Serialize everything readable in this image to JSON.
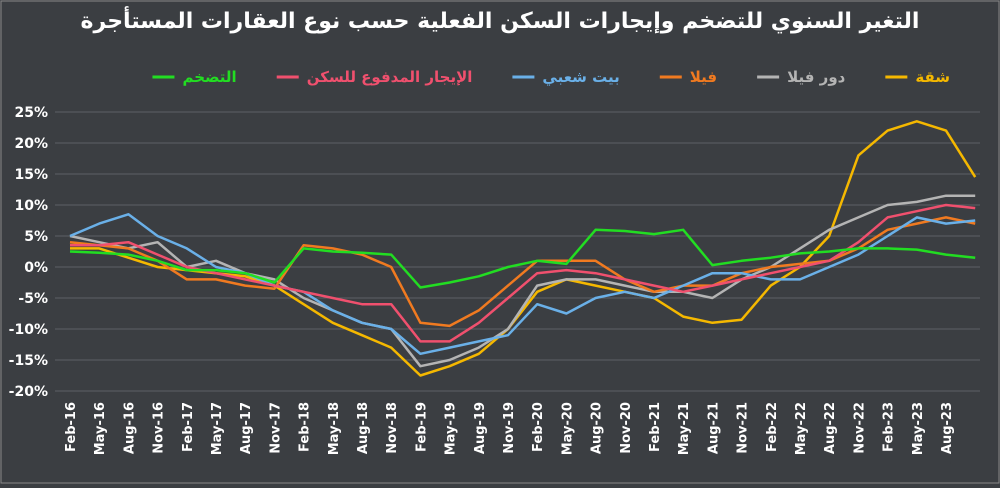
{
  "chart_data": {
    "type": "line",
    "title": "التغير السنوي للتضخم وإيجارات السكن الفعلية حسب نوع العقارات المستأجرة",
    "categories": [
      "Feb-16",
      "May-16",
      "Aug-16",
      "Nov-16",
      "Feb-17",
      "May-17",
      "Aug-17",
      "Nov-17",
      "Feb-18",
      "May-18",
      "Aug-18",
      "Nov-18",
      "Feb-19",
      "May-19",
      "Aug-19",
      "Nov-19",
      "Feb-20",
      "May-20",
      "Aug-20",
      "Nov-20",
      "Feb-21",
      "May-21",
      "Aug-21",
      "Nov-21",
      "Feb-22",
      "May-22",
      "Aug-22",
      "Nov-22",
      "Feb-23",
      "May-23",
      "Aug-23",
      null
    ],
    "series": [
      {
        "name": "شقة",
        "color": "#f5b800",
        "values": [
          3,
          3,
          1.5,
          0,
          -0.5,
          -1,
          -1.5,
          -3,
          -6,
          -9,
          -11,
          -13,
          -17.5,
          -16,
          -14,
          -10,
          -4,
          -2,
          -3,
          -4,
          -5,
          -8,
          -9,
          -8.5,
          -3,
          0,
          5,
          18,
          22,
          23.5,
          22,
          14.5
        ]
      },
      {
        "name": "دور فيلا",
        "color": "#b4b4b4",
        "values": [
          5,
          4,
          3,
          4,
          0,
          1,
          -1,
          -2,
          -5,
          -7,
          -9,
          -10,
          -16,
          -15,
          -13,
          -10,
          -3,
          -2,
          -2,
          -3,
          -4,
          -4,
          -5,
          -2,
          0,
          3,
          6,
          8,
          10,
          10.5,
          11.5,
          11.5
        ]
      },
      {
        "name": "فيلا",
        "color": "#f07a20",
        "values": [
          4,
          3.5,
          3,
          1,
          -2,
          -2,
          -3,
          -3.5,
          3.5,
          3,
          2,
          0,
          -9,
          -9.5,
          -7,
          -3,
          1,
          1,
          1,
          -2,
          -4,
          -3,
          -3,
          -1,
          0,
          0.5,
          1,
          3,
          6,
          7,
          8,
          7
        ]
      },
      {
        "name": "بيت شعبي",
        "color": "#6ab0e8",
        "values": [
          5,
          7,
          8.5,
          5,
          3,
          0,
          -1,
          -3,
          -4,
          -7,
          -9,
          -10,
          -14,
          -13,
          -12,
          -11,
          -6,
          -7.5,
          -5,
          -4,
          -5,
          -3,
          -1,
          -1,
          -2,
          -2,
          0,
          2,
          5,
          8,
          7,
          7.5
        ]
      },
      {
        "name": "الإيجار المدفوع للسكن",
        "color": "#f0506e",
        "values": [
          3.5,
          3.5,
          4,
          2,
          0,
          -1,
          -2,
          -3,
          -4,
          -5,
          -6,
          -6,
          -12,
          -12,
          -9,
          -5,
          -1,
          -0.5,
          -1,
          -2,
          -3,
          -4,
          -3,
          -2,
          -1,
          0,
          1,
          4,
          8,
          9,
          10,
          9.5
        ]
      },
      {
        "name": "التضخم",
        "color": "#22dd22",
        "values": [
          2.5,
          2.3,
          2,
          1,
          -0.5,
          -0.5,
          -1,
          -2.5,
          3,
          2.5,
          2.3,
          2,
          -3.3,
          -2.5,
          -1.5,
          0,
          1,
          0.5,
          6,
          5.8,
          5.3,
          6,
          0.3,
          1,
          1.5,
          2.2,
          2.5,
          3,
          3,
          2.8,
          2,
          1.5
        ]
      }
    ],
    "ylim": [
      -20,
      25
    ],
    "yticks": [
      {
        "value": -20,
        "label": "-20%"
      },
      {
        "value": -15,
        "label": "-15%"
      },
      {
        "value": -10,
        "label": "-10%"
      },
      {
        "value": -5,
        "label": "-5%"
      },
      {
        "value": 0,
        "label": "0%"
      },
      {
        "value": 5,
        "label": "5%"
      },
      {
        "value": 10,
        "label": "10%"
      },
      {
        "value": 15,
        "label": "15%"
      },
      {
        "value": 20,
        "label": "20%"
      },
      {
        "value": 25,
        "label": "25%"
      }
    ],
    "grid": true
  }
}
